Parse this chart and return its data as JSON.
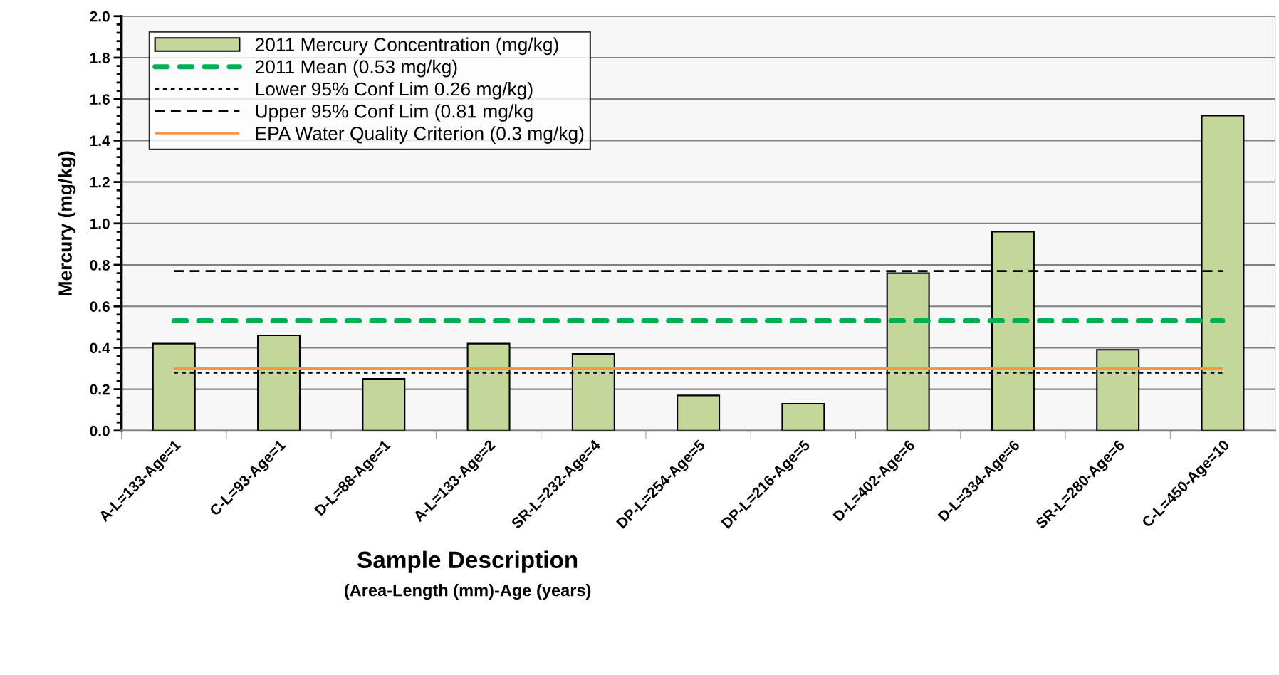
{
  "chart_data": {
    "type": "bar",
    "xlabel": "Sample Description",
    "ylabel": "Mercury (mg/kg)",
    "annotations": [
      "(Area-Length (mm)-Age (years)"
    ],
    "categories": [
      "A-L=133-Age=1",
      "C-L=93-Age=1",
      "D-L=88-Age=1",
      "A-L=133-Age=2",
      "SR-L=232-Age=4",
      "DP-L=254-Age=5",
      "DP-L=216-Age=5",
      "D-L=402-Age=6",
      "D-L=334-Age=6",
      "SR-L=280-Age=6",
      "C-L=450-Age=10"
    ],
    "series": [
      {
        "name": "2011 Mercury Concentration (mg/kg)",
        "color": "#c4d79b",
        "values": [
          0.42,
          0.46,
          0.25,
          0.42,
          0.37,
          0.17,
          0.13,
          0.76,
          0.96,
          0.39,
          1.52
        ]
      }
    ],
    "ref_lines": [
      {
        "axis": "y",
        "value": 0.53,
        "label": "2011 Mean (0.53 mg/kg)",
        "color": "#00b050",
        "line_style": "dashed"
      },
      {
        "axis": "y",
        "value": 0.28,
        "label": "Lower 95% Conf Lim 0.26 mg/kg)",
        "color": "#000000",
        "line_style": "dotted"
      },
      {
        "axis": "y",
        "value": 0.77,
        "label": "Upper 95% Conf Lim (0.81 mg/kg",
        "color": "#000000",
        "line_style": "dashed"
      },
      {
        "axis": "y",
        "value": 0.3,
        "label": "EPA Water Quality Criterion (0.3 mg/kg)",
        "color": "#f79646",
        "line_style": "solid"
      }
    ],
    "ylim": [
      0,
      2.0
    ],
    "yticks": [
      {
        "value": 0,
        "label": "0.0"
      },
      {
        "value": 0.2,
        "label": "0.2"
      },
      {
        "value": 0.4,
        "label": "0.4"
      },
      {
        "value": 0.6,
        "label": "0.6"
      },
      {
        "value": 0.8,
        "label": "0.8"
      },
      {
        "value": 1.0,
        "label": "1.0"
      },
      {
        "value": 1.2,
        "label": "1.2"
      },
      {
        "value": 1.4,
        "label": "1.4"
      },
      {
        "value": 1.6,
        "label": "1.6"
      },
      {
        "value": 1.8,
        "label": "1.8"
      },
      {
        "value": 2.0,
        "label": "2.0"
      }
    ],
    "grid": "y",
    "legend": "top left"
  }
}
